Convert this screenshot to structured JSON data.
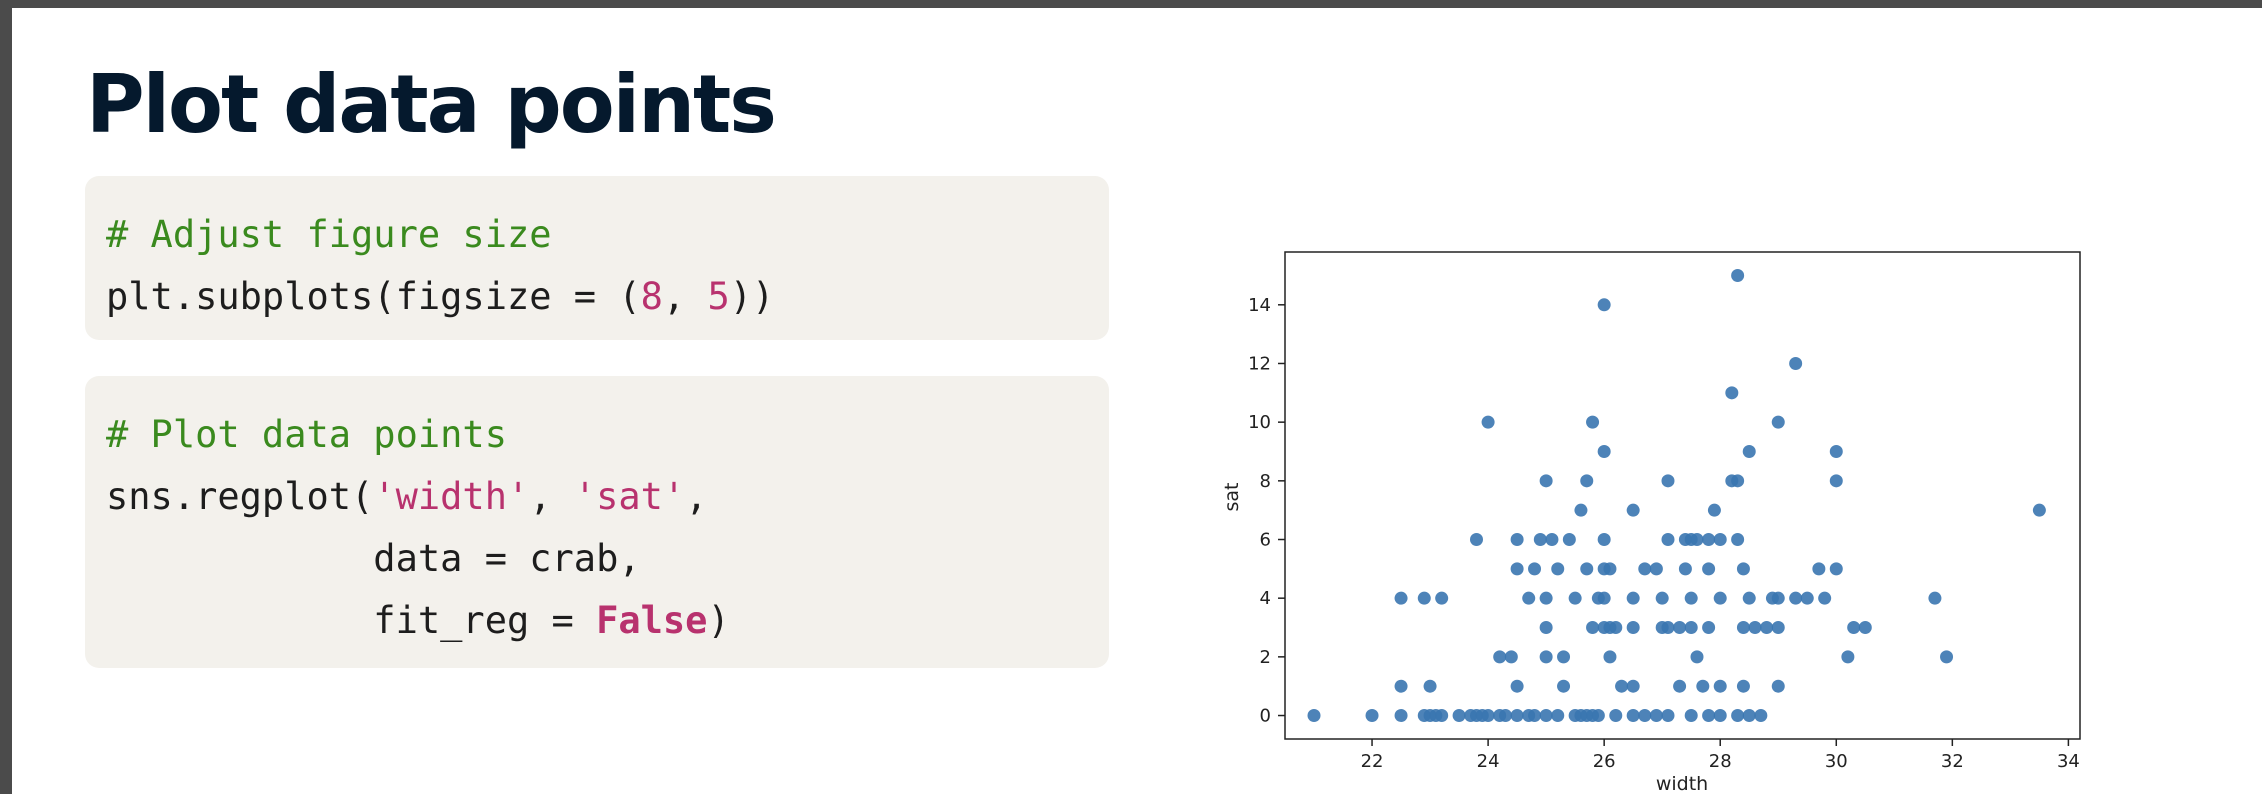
{
  "slide": {
    "title": "Plot data points"
  },
  "code_blocks": [
    {
      "lines": [
        [
          {
            "t": "# Adjust figure size",
            "c": "cmt"
          }
        ],
        [
          {
            "t": "plt.subplots(figsize = (",
            "c": ""
          },
          {
            "t": "8",
            "c": "num"
          },
          {
            "t": ", ",
            "c": ""
          },
          {
            "t": "5",
            "c": "num"
          },
          {
            "t": "))",
            "c": ""
          }
        ]
      ]
    },
    {
      "lines": [
        [
          {
            "t": "# Plot data points",
            "c": "cmt"
          }
        ],
        [
          {
            "t": "sns.regplot(",
            "c": ""
          },
          {
            "t": "'width'",
            "c": "str"
          },
          {
            "t": ", ",
            "c": ""
          },
          {
            "t": "'sat'",
            "c": "str"
          },
          {
            "t": ",",
            "c": ""
          }
        ],
        [
          {
            "t": "            data = crab,",
            "c": ""
          }
        ],
        [
          {
            "t": "            fit_reg = ",
            "c": ""
          },
          {
            "t": "False",
            "c": "kw"
          },
          {
            "t": ")",
            "c": ""
          }
        ]
      ]
    }
  ],
  "chart_data": {
    "type": "scatter",
    "title": "",
    "xlabel": "width",
    "ylabel": "sat",
    "xlim": [
      20.5,
      34.2
    ],
    "ylim": [
      -0.8,
      15.8
    ],
    "xticks": [
      22,
      24,
      26,
      28,
      30,
      32,
      34
    ],
    "yticks": [
      0,
      2,
      4,
      6,
      8,
      10,
      12,
      14
    ],
    "grid": false,
    "marker_color": "#3a75b0",
    "points": [
      [
        21.0,
        0
      ],
      [
        22.0,
        0
      ],
      [
        22.5,
        0
      ],
      [
        22.9,
        0
      ],
      [
        23.0,
        0
      ],
      [
        23.1,
        0
      ],
      [
        23.2,
        0
      ],
      [
        23.5,
        0
      ],
      [
        23.7,
        0
      ],
      [
        23.8,
        0
      ],
      [
        23.9,
        0
      ],
      [
        24.0,
        0
      ],
      [
        24.2,
        0
      ],
      [
        24.3,
        0
      ],
      [
        24.5,
        0
      ],
      [
        24.7,
        0
      ],
      [
        24.8,
        0
      ],
      [
        25.0,
        0
      ],
      [
        25.2,
        0
      ],
      [
        25.5,
        0
      ],
      [
        25.6,
        0
      ],
      [
        25.7,
        0
      ],
      [
        25.8,
        0
      ],
      [
        25.9,
        0
      ],
      [
        26.2,
        0
      ],
      [
        26.5,
        0
      ],
      [
        26.7,
        0
      ],
      [
        26.9,
        0
      ],
      [
        27.1,
        0
      ],
      [
        27.5,
        0
      ],
      [
        27.8,
        0
      ],
      [
        28.0,
        0
      ],
      [
        28.3,
        0
      ],
      [
        28.5,
        0
      ],
      [
        28.7,
        0
      ],
      [
        22.5,
        1
      ],
      [
        23.0,
        1
      ],
      [
        24.5,
        1
      ],
      [
        25.3,
        1
      ],
      [
        26.3,
        1
      ],
      [
        26.5,
        1
      ],
      [
        27.3,
        1
      ],
      [
        27.7,
        1
      ],
      [
        28.0,
        1
      ],
      [
        28.4,
        1
      ],
      [
        29.0,
        1
      ],
      [
        24.2,
        2
      ],
      [
        24.4,
        2
      ],
      [
        25.0,
        2
      ],
      [
        25.3,
        2
      ],
      [
        26.1,
        2
      ],
      [
        27.6,
        2
      ],
      [
        30.2,
        2
      ],
      [
        31.9,
        2
      ],
      [
        25.0,
        3
      ],
      [
        25.8,
        3
      ],
      [
        26.0,
        3
      ],
      [
        26.1,
        3
      ],
      [
        26.2,
        3
      ],
      [
        26.5,
        3
      ],
      [
        27.0,
        3
      ],
      [
        27.1,
        3
      ],
      [
        27.3,
        3
      ],
      [
        27.5,
        3
      ],
      [
        27.8,
        3
      ],
      [
        28.4,
        3
      ],
      [
        28.6,
        3
      ],
      [
        28.8,
        3
      ],
      [
        29.0,
        3
      ],
      [
        30.3,
        3
      ],
      [
        30.5,
        3
      ],
      [
        22.5,
        4
      ],
      [
        22.9,
        4
      ],
      [
        23.2,
        4
      ],
      [
        24.7,
        4
      ],
      [
        25.0,
        4
      ],
      [
        25.5,
        4
      ],
      [
        25.9,
        4
      ],
      [
        26.0,
        4
      ],
      [
        26.5,
        4
      ],
      [
        27.0,
        4
      ],
      [
        27.5,
        4
      ],
      [
        28.0,
        4
      ],
      [
        28.5,
        4
      ],
      [
        28.9,
        4
      ],
      [
        29.0,
        4
      ],
      [
        29.3,
        4
      ],
      [
        29.5,
        4
      ],
      [
        29.8,
        4
      ],
      [
        31.7,
        4
      ],
      [
        24.5,
        5
      ],
      [
        24.8,
        5
      ],
      [
        25.2,
        5
      ],
      [
        25.7,
        5
      ],
      [
        26.0,
        5
      ],
      [
        26.1,
        5
      ],
      [
        26.7,
        5
      ],
      [
        26.9,
        5
      ],
      [
        27.4,
        5
      ],
      [
        27.8,
        5
      ],
      [
        28.4,
        5
      ],
      [
        29.7,
        5
      ],
      [
        30.0,
        5
      ],
      [
        23.8,
        6
      ],
      [
        24.5,
        6
      ],
      [
        24.9,
        6
      ],
      [
        25.1,
        6
      ],
      [
        25.4,
        6
      ],
      [
        26.0,
        6
      ],
      [
        27.1,
        6
      ],
      [
        27.4,
        6
      ],
      [
        27.5,
        6
      ],
      [
        27.6,
        6
      ],
      [
        27.8,
        6
      ],
      [
        28.0,
        6
      ],
      [
        28.3,
        6
      ],
      [
        25.6,
        7
      ],
      [
        26.5,
        7
      ],
      [
        27.9,
        7
      ],
      [
        33.5,
        7
      ],
      [
        25.0,
        8
      ],
      [
        25.7,
        8
      ],
      [
        27.1,
        8
      ],
      [
        28.2,
        8
      ],
      [
        28.3,
        8
      ],
      [
        30.0,
        8
      ],
      [
        26.0,
        9
      ],
      [
        28.5,
        9
      ],
      [
        30.0,
        9
      ],
      [
        24.0,
        10
      ],
      [
        25.8,
        10
      ],
      [
        29.0,
        10
      ],
      [
        28.2,
        11
      ],
      [
        29.3,
        12
      ],
      [
        26.0,
        14
      ],
      [
        28.3,
        15
      ]
    ]
  }
}
